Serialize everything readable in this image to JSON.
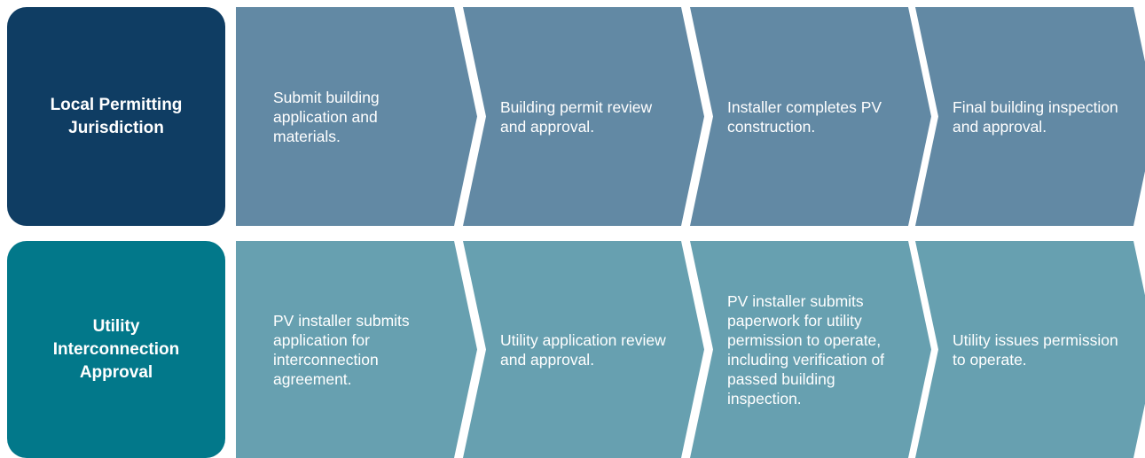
{
  "rows": [
    {
      "label": "Local Permitting Jurisdiction",
      "steps": [
        "Submit building application and materials.",
        "Building permit review and approval.",
        "Installer completes PV construction.",
        "Final building inspection and approval."
      ]
    },
    {
      "label": "Utility Interconnection Approval",
      "steps": [
        "PV installer submits application for interconnection agreement.",
        "Utility application review and approval.",
        "PV installer submits paperwork for utility permission to operate, including verification of passed building inspection.",
        "Utility issues permission to operate."
      ]
    }
  ]
}
